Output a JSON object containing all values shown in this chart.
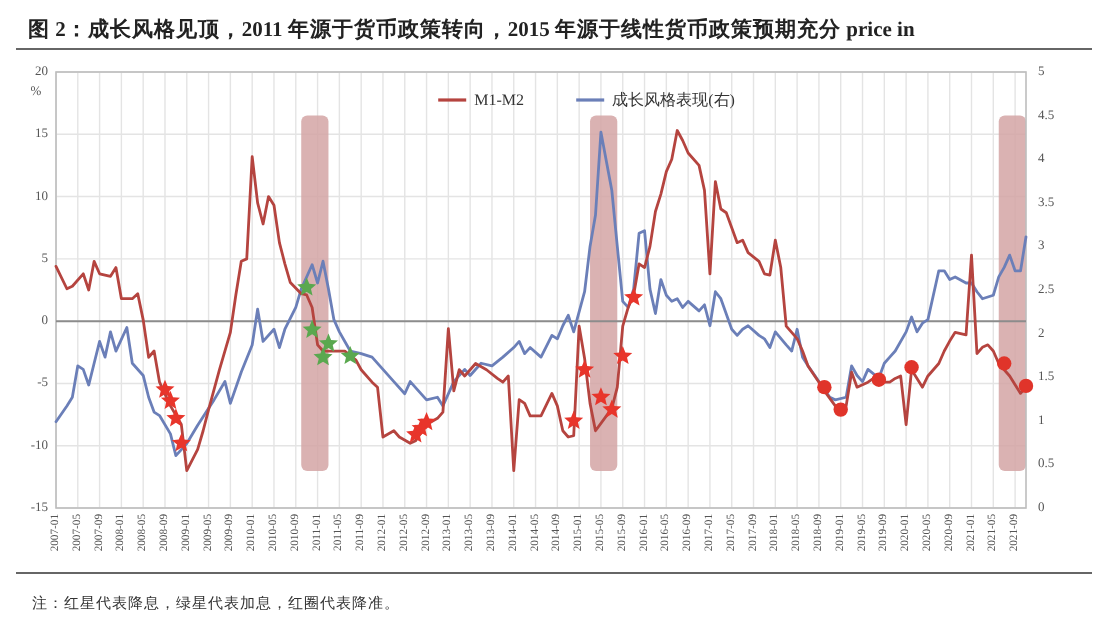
{
  "chart_data": {
    "type": "line",
    "title": "图 2：成长风格见顶，2011 年源于货币政策转向，2015 年源于线性货币政策预期充分 price in",
    "ylabel": "%",
    "annotations": [
      "注：红星代表降息，绿星代表加息，红圈代表降准。"
    ],
    "xlim": [
      "2007-01",
      "2021-11"
    ],
    "xticks": [
      "2007-01",
      "2007-05",
      "2007-09",
      "2008-01",
      "2008-05",
      "2008-09",
      "2009-01",
      "2009-05",
      "2009-09",
      "2010-01",
      "2010-05",
      "2010-09",
      "2011-01",
      "2011-05",
      "2011-09",
      "2012-01",
      "2012-05",
      "2012-09",
      "2013-01",
      "2013-05",
      "2013-09",
      "2014-01",
      "2014-05",
      "2014-09",
      "2015-01",
      "2015-05",
      "2015-09",
      "2016-01",
      "2016-05",
      "2016-09",
      "2017-01",
      "2017-05",
      "2017-09",
      "2018-01",
      "2018-05",
      "2018-09",
      "2019-01",
      "2019-05",
      "2019-09",
      "2020-01",
      "2020-05",
      "2020-09",
      "2021-01",
      "2021-05",
      "2021-09"
    ],
    "ylim": [
      -15,
      20
    ],
    "yticks": [
      -15,
      -10,
      -5,
      0,
      5,
      10,
      15,
      20
    ],
    "y2lim": [
      0,
      5
    ],
    "y2ticks": [
      0,
      0.5,
      1,
      1.5,
      2,
      2.5,
      3,
      3.5,
      4,
      4.5,
      5
    ],
    "grid": true,
    "legend": "top",
    "ref_lines": [
      {
        "axis": "y",
        "value": 0,
        "color": "#8c8c8c"
      }
    ],
    "bands": [
      {
        "axis": "x",
        "from": "2010-10",
        "to": "2011-03",
        "color": "#d4a5a5"
      },
      {
        "axis": "x",
        "from": "2015-03",
        "to": "2015-08",
        "color": "#d4a5a5"
      },
      {
        "axis": "x",
        "from": "2021-06",
        "to": "2021-11",
        "color": "#d4a5a5"
      }
    ],
    "series": [
      {
        "name": "M1-M2",
        "color": "#b5443f",
        "x": [
          "2007-01",
          "2007-03",
          "2007-04",
          "2007-06",
          "2007-07",
          "2007-08",
          "2007-09",
          "2007-11",
          "2007-12",
          "2008-01",
          "2008-03",
          "2008-04",
          "2008-05",
          "2008-06",
          "2008-07",
          "2008-08",
          "2008-10",
          "2008-12",
          "2009-01",
          "2009-03",
          "2009-04",
          "2009-05",
          "2009-07",
          "2009-09",
          "2009-10",
          "2009-11",
          "2009-12",
          "2010-01",
          "2010-02",
          "2010-03",
          "2010-04",
          "2010-05",
          "2010-06",
          "2010-07",
          "2010-08",
          "2010-10",
          "2010-11",
          "2010-12",
          "2011-01",
          "2011-02",
          "2011-04",
          "2011-06",
          "2011-08",
          "2011-09",
          "2011-11",
          "2011-12",
          "2012-01",
          "2012-03",
          "2012-04",
          "2012-06",
          "2012-07",
          "2012-09",
          "2012-11",
          "2012-12",
          "2013-01",
          "2013-02",
          "2013-03",
          "2013-04",
          "2013-06",
          "2013-08",
          "2013-10",
          "2013-11",
          "2013-12",
          "2014-01",
          "2014-02",
          "2014-03",
          "2014-04",
          "2014-06",
          "2014-08",
          "2014-09",
          "2014-10",
          "2014-11",
          "2014-12",
          "2015-01",
          "2015-02",
          "2015-03",
          "2015-04",
          "2015-06",
          "2015-07",
          "2015-08",
          "2015-09",
          "2015-10",
          "2015-11",
          "2015-12",
          "2016-01",
          "2016-02",
          "2016-03",
          "2016-04",
          "2016-05",
          "2016-06",
          "2016-07",
          "2016-08",
          "2016-09",
          "2016-11",
          "2016-12",
          "2017-01",
          "2017-02",
          "2017-03",
          "2017-04",
          "2017-05",
          "2017-06",
          "2017-07",
          "2017-08",
          "2017-10",
          "2017-11",
          "2017-12",
          "2018-01",
          "2018-02",
          "2018-03",
          "2018-04",
          "2018-05",
          "2018-06",
          "2018-07",
          "2018-09",
          "2018-10",
          "2018-12",
          "2019-02",
          "2019-03",
          "2019-04",
          "2019-06",
          "2019-07",
          "2019-08",
          "2019-10",
          "2019-11",
          "2019-12",
          "2020-01",
          "2020-02",
          "2020-03",
          "2020-04",
          "2020-05",
          "2020-07",
          "2020-08",
          "2020-09",
          "2020-10",
          "2020-12",
          "2021-01",
          "2021-02",
          "2021-03",
          "2021-04",
          "2021-05",
          "2021-06",
          "2021-08",
          "2021-09",
          "2021-10",
          "2021-11"
        ],
        "values": [
          4.4,
          2.6,
          2.8,
          3.8,
          2.5,
          4.8,
          3.8,
          3.6,
          4.3,
          1.8,
          1.8,
          2.2,
          0.1,
          -2.9,
          -2.4,
          -4.9,
          -6.8,
          -8.3,
          -12.0,
          -10.3,
          -8.8,
          -7.1,
          -3.9,
          -0.9,
          2.1,
          4.8,
          5.0,
          13.2,
          9.5,
          7.8,
          10.0,
          9.3,
          6.3,
          4.6,
          3.1,
          2.2,
          2.1,
          1.1,
          -1.9,
          -2.4,
          -2.4,
          -2.4,
          -3.1,
          -3.9,
          -4.9,
          -5.3,
          -9.3,
          -8.8,
          -9.3,
          -9.8,
          -9.6,
          -8.3,
          -7.8,
          -7.3,
          -0.6,
          -5.6,
          -3.9,
          -4.4,
          -3.4,
          -3.9,
          -4.6,
          -4.9,
          -4.4,
          -12.0,
          -6.3,
          -6.6,
          -7.6,
          -7.6,
          -5.8,
          -6.8,
          -8.8,
          -9.3,
          -9.2,
          -0.4,
          -3.0,
          -6.6,
          -8.8,
          -7.6,
          -7.0,
          -5.3,
          -0.4,
          1.1,
          2.1,
          4.6,
          4.3,
          6.0,
          8.8,
          10.2,
          12.0,
          13.0,
          15.3,
          14.5,
          13.5,
          12.5,
          10.5,
          3.8,
          11.2,
          9.0,
          8.7,
          7.5,
          6.3,
          6.5,
          5.5,
          4.8,
          3.8,
          3.7,
          6.5,
          4.3,
          -0.4,
          -0.9,
          -1.4,
          -2.4,
          -3.6,
          -4.9,
          -5.6,
          -6.8,
          -6.8,
          -4.1,
          -5.3,
          -4.9,
          -4.6,
          -4.9,
          -4.9,
          -4.6,
          -4.4,
          -8.3,
          -3.9,
          -4.6,
          -5.3,
          -4.4,
          -3.4,
          -2.4,
          -1.6,
          -0.9,
          -1.1,
          5.3,
          -2.6,
          -2.1,
          -1.9,
          -2.4,
          -3.4,
          -4.4,
          -5.1,
          -5.8,
          -5.3
        ]
      },
      {
        "name": "成长风格表现(右)",
        "color": "#6b7fb8",
        "axis": "y2",
        "x": [
          "2007-01",
          "2007-03",
          "2007-04",
          "2007-05",
          "2007-06",
          "2007-07",
          "2007-08",
          "2007-09",
          "2007-10",
          "2007-11",
          "2007-12",
          "2008-02",
          "2008-03",
          "2008-05",
          "2008-06",
          "2008-07",
          "2008-08",
          "2008-10",
          "2008-11",
          "2008-12",
          "2009-01",
          "2009-03",
          "2009-06",
          "2009-08",
          "2009-09",
          "2009-11",
          "2010-01",
          "2010-02",
          "2010-03",
          "2010-05",
          "2010-06",
          "2010-07",
          "2010-09",
          "2010-10",
          "2010-12",
          "2011-01",
          "2011-02",
          "2011-03",
          "2011-04",
          "2011-05",
          "2011-06",
          "2011-07",
          "2011-09",
          "2011-11",
          "2012-01",
          "2012-03",
          "2012-05",
          "2012-06",
          "2012-09",
          "2012-11",
          "2012-12",
          "2013-02",
          "2013-04",
          "2013-05",
          "2013-07",
          "2013-09",
          "2013-11",
          "2014-01",
          "2014-02",
          "2014-03",
          "2014-04",
          "2014-06",
          "2014-08",
          "2014-09",
          "2014-10",
          "2014-11",
          "2014-12",
          "2015-02",
          "2015-03",
          "2015-04",
          "2015-05",
          "2015-07",
          "2015-08",
          "2015-09",
          "2015-10",
          "2015-11",
          "2015-12",
          "2016-01",
          "2016-02",
          "2016-03",
          "2016-04",
          "2016-05",
          "2016-06",
          "2016-07",
          "2016-08",
          "2016-09",
          "2016-11",
          "2016-12",
          "2017-01",
          "2017-02",
          "2017-03",
          "2017-05",
          "2017-06",
          "2017-07",
          "2017-08",
          "2017-10",
          "2017-11",
          "2017-12",
          "2018-01",
          "2018-03",
          "2018-04",
          "2018-05",
          "2018-06",
          "2018-07",
          "2018-09",
          "2018-11",
          "2018-12",
          "2019-02",
          "2019-03",
          "2019-04",
          "2019-05",
          "2019-06",
          "2019-08",
          "2019-09",
          "2019-10",
          "2019-11",
          "2020-01",
          "2020-02",
          "2020-03",
          "2020-04",
          "2020-05",
          "2020-07",
          "2020-08",
          "2020-09",
          "2020-10",
          "2020-12",
          "2021-01",
          "2021-02",
          "2021-03",
          "2021-05",
          "2021-06",
          "2021-07",
          "2021-08",
          "2021-09",
          "2021-10",
          "2021-11"
        ],
        "values": [
          0.99,
          1.17,
          1.27,
          1.63,
          1.59,
          1.41,
          1.66,
          1.91,
          1.73,
          2.02,
          1.8,
          2.07,
          1.66,
          1.52,
          1.27,
          1.1,
          1.06,
          0.85,
          0.6,
          0.67,
          0.74,
          0.95,
          1.24,
          1.45,
          1.2,
          1.56,
          1.87,
          2.28,
          1.91,
          2.05,
          1.84,
          2.05,
          2.3,
          2.51,
          2.79,
          2.58,
          2.83,
          2.51,
          2.16,
          2.02,
          1.91,
          1.8,
          1.77,
          1.73,
          1.59,
          1.45,
          1.31,
          1.45,
          1.24,
          1.27,
          1.17,
          1.45,
          1.59,
          1.52,
          1.66,
          1.63,
          1.73,
          1.84,
          1.91,
          1.77,
          1.84,
          1.73,
          1.98,
          1.94,
          2.09,
          2.21,
          2.02,
          2.48,
          3.0,
          3.36,
          4.31,
          3.64,
          3.0,
          2.37,
          2.3,
          2.51,
          3.15,
          3.18,
          2.51,
          2.23,
          2.62,
          2.44,
          2.37,
          2.4,
          2.3,
          2.37,
          2.26,
          2.33,
          2.09,
          2.48,
          2.4,
          2.05,
          1.98,
          2.05,
          2.09,
          1.98,
          1.94,
          1.84,
          2.02,
          1.87,
          1.8,
          2.05,
          1.73,
          1.63,
          1.45,
          1.27,
          1.24,
          1.27,
          1.63,
          1.52,
          1.45,
          1.59,
          1.49,
          1.66,
          1.73,
          1.8,
          2.02,
          2.19,
          2.02,
          2.12,
          2.16,
          2.72,
          2.72,
          2.62,
          2.65,
          2.58,
          2.58,
          2.48,
          2.4,
          2.44,
          2.65,
          2.76,
          2.9,
          2.72,
          2.72,
          3.11
        ]
      },
      {
        "type": "scatter",
        "marker": "star",
        "color": "#e8352b",
        "x": [
          "2008-09",
          "2008-10",
          "2008-11",
          "2008-12",
          "2012-07",
          "2012-08",
          "2012-09",
          "2014-12",
          "2015-02",
          "2015-05",
          "2015-07",
          "2015-09",
          "2015-11"
        ],
        "values": [
          -5.5,
          -6.4,
          -7.8,
          -9.8,
          -9.1,
          -8.6,
          -8.1,
          -8.0,
          -3.9,
          -6.1,
          -7.1,
          -2.8,
          1.9
        ]
      },
      {
        "type": "scatter",
        "marker": "star",
        "color": "#5aa84f",
        "x": [
          "2010-11",
          "2010-12",
          "2011-02",
          "2011-03",
          "2011-07"
        ],
        "values": [
          2.7,
          -0.7,
          -2.9,
          -1.8,
          -2.8
        ]
      },
      {
        "type": "scatter",
        "marker": "circle",
        "color": "#e0342a",
        "x": [
          "2018-10",
          "2019-01",
          "2019-08",
          "2020-02",
          "2021-07",
          "2021-11"
        ],
        "values": [
          -5.3,
          -7.1,
          -4.7,
          -3.7,
          -3.4,
          -5.2
        ]
      }
    ]
  }
}
